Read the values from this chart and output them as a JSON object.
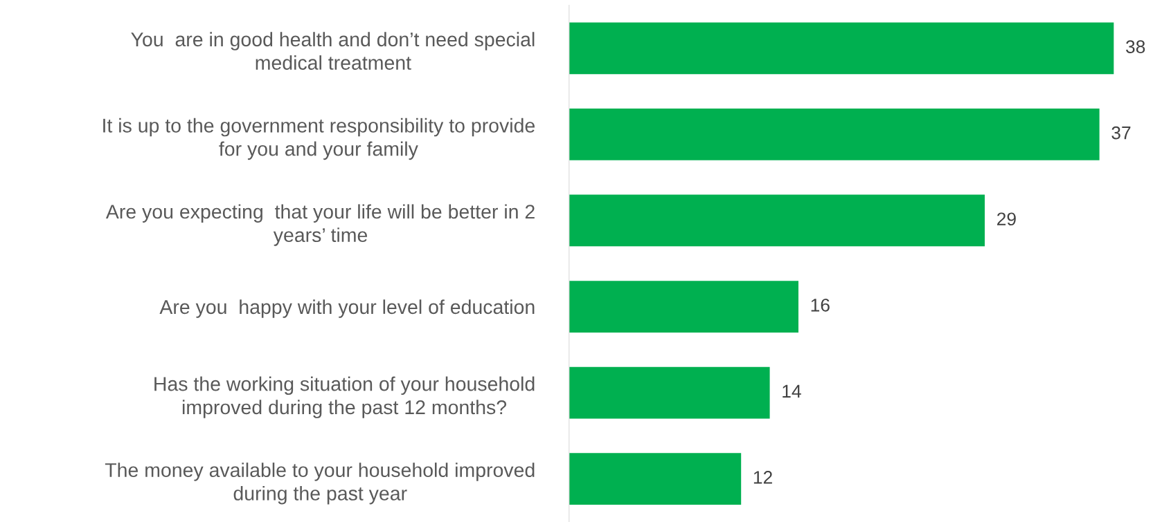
{
  "chart_data": {
    "type": "bar",
    "orientation": "horizontal",
    "categories": [
      "You  are in good health and don’t need special\nmedical treatment",
      "It is up to the government responsibility to provide\nfor you and your family",
      "Are you expecting  that your life will be better in 2\nyears’ time",
      "Are you  happy with your level of education",
      "Has the working situation of your household\nimproved during the past 12 months?",
      "The money available to your household improved\nduring the past year"
    ],
    "values": [
      38,
      37,
      29,
      16,
      14,
      12
    ],
    "color": "#00b050",
    "data_labels": true,
    "grid": false,
    "tick_labels": "y"
  }
}
